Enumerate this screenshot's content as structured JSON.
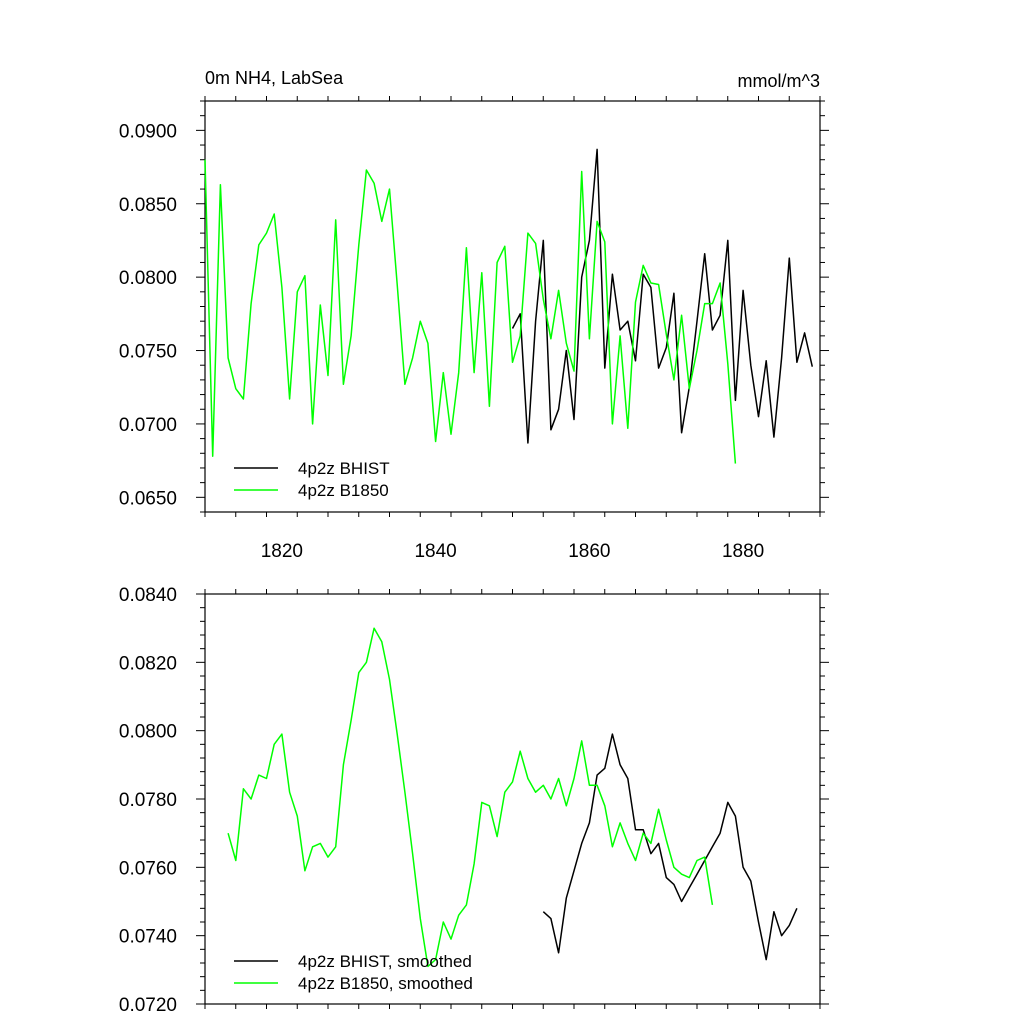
{
  "chart_data": [
    {
      "type": "line",
      "title_left": "0m NH4, LabSea",
      "title_right": "mmol/m^3",
      "xlim": [
        1810,
        1890
      ],
      "ylim": [
        0.064,
        0.092
      ],
      "xticks": [
        1820,
        1840,
        1860,
        1880
      ],
      "yticks": [
        0.065,
        0.07,
        0.075,
        0.08,
        0.085,
        0.09
      ],
      "ytick_labels": [
        "0.0650",
        "0.0700",
        "0.0750",
        "0.0800",
        "0.0850",
        "0.0900"
      ],
      "show_xtick_labels": true,
      "legend_position": "bottom-left",
      "series": [
        {
          "name": "4p2z BHIST",
          "color": "#000000",
          "x": [
            1850,
            1851,
            1852,
            1853,
            1854,
            1855,
            1856,
            1857,
            1858,
            1859,
            1860,
            1861,
            1862,
            1863,
            1864,
            1865,
            1866,
            1867,
            1868,
            1869,
            1870,
            1871,
            1872,
            1873,
            1874,
            1875,
            1876,
            1877,
            1878,
            1879,
            1880,
            1881,
            1882,
            1883,
            1884,
            1885,
            1886,
            1887,
            1888,
            1889
          ],
          "values": [
            0.0765,
            0.0775,
            0.0687,
            0.077,
            0.0825,
            0.0696,
            0.071,
            0.075,
            0.0703,
            0.08,
            0.0825,
            0.0887,
            0.0738,
            0.0802,
            0.0764,
            0.077,
            0.0743,
            0.0802,
            0.0793,
            0.0738,
            0.0752,
            0.0789,
            0.0694,
            0.0725,
            0.077,
            0.0816,
            0.0764,
            0.0774,
            0.0825,
            0.0716,
            0.0791,
            0.074,
            0.0705,
            0.0743,
            0.0691,
            0.0745,
            0.0813,
            0.0742,
            0.0762,
            0.0739
          ]
        },
        {
          "name": "4p2z B1850",
          "color": "#00ff00",
          "x": [
            1810,
            1811,
            1812,
            1813,
            1814,
            1815,
            1816,
            1817,
            1818,
            1819,
            1820,
            1821,
            1822,
            1823,
            1824,
            1825,
            1826,
            1827,
            1828,
            1829,
            1830,
            1831,
            1832,
            1833,
            1834,
            1835,
            1836,
            1837,
            1838,
            1839,
            1840,
            1841,
            1842,
            1843,
            1844,
            1845,
            1846,
            1847,
            1848,
            1849,
            1850,
            1851,
            1852,
            1853,
            1854,
            1855,
            1856,
            1857,
            1858,
            1859,
            1860,
            1861,
            1862,
            1863,
            1864,
            1865,
            1866,
            1867,
            1868,
            1869,
            1870,
            1871,
            1872,
            1873,
            1874,
            1875,
            1876,
            1877,
            1878,
            1879
          ],
          "values": [
            0.088,
            0.0678,
            0.0863,
            0.0745,
            0.0724,
            0.0717,
            0.0782,
            0.0822,
            0.083,
            0.0843,
            0.0793,
            0.0717,
            0.079,
            0.0801,
            0.07,
            0.0781,
            0.0733,
            0.0839,
            0.0727,
            0.076,
            0.0822,
            0.0873,
            0.0864,
            0.0838,
            0.086,
            0.0795,
            0.0727,
            0.0745,
            0.077,
            0.0755,
            0.0688,
            0.0735,
            0.0693,
            0.0735,
            0.082,
            0.0735,
            0.0803,
            0.0712,
            0.081,
            0.0821,
            0.0742,
            0.076,
            0.083,
            0.0823,
            0.0785,
            0.0758,
            0.0791,
            0.0755,
            0.0736,
            0.0872,
            0.0758,
            0.0838,
            0.0824,
            0.07,
            0.076,
            0.0697,
            0.0783,
            0.0808,
            0.0796,
            0.0795,
            0.0761,
            0.073,
            0.0774,
            0.0724,
            0.075,
            0.0782,
            0.0782,
            0.0796,
            0.0741,
            0.0673
          ]
        }
      ]
    },
    {
      "type": "line",
      "xlim": [
        1810,
        1890
      ],
      "ylim": [
        0.072,
        0.084
      ],
      "xticks": [
        1820,
        1840,
        1860,
        1880
      ],
      "yticks": [
        0.072,
        0.074,
        0.076,
        0.078,
        0.08,
        0.082,
        0.084
      ],
      "ytick_labels": [
        "0.0720",
        "0.0740",
        "0.0760",
        "0.0780",
        "0.0800",
        "0.0820",
        "0.0840"
      ],
      "show_xtick_labels": false,
      "legend_position": "bottom-left",
      "series": [
        {
          "name": "4p2z BHIST, smoothed",
          "color": "#000000",
          "x": [
            1854,
            1855,
            1856,
            1857,
            1858,
            1859,
            1860,
            1861,
            1862,
            1863,
            1864,
            1865,
            1866,
            1867,
            1868,
            1869,
            1870,
            1871,
            1872,
            1873,
            1874,
            1875,
            1876,
            1877,
            1878,
            1879,
            1880,
            1881,
            1882,
            1883,
            1884,
            1885,
            1886,
            1887
          ],
          "values": [
            0.0747,
            0.0745,
            0.0735,
            0.0751,
            0.0759,
            0.0767,
            0.0773,
            0.0787,
            0.0789,
            0.0799,
            0.079,
            0.0786,
            0.0771,
            0.0771,
            0.0764,
            0.0767,
            0.0757,
            0.0755,
            0.075,
            0.0754,
            0.0758,
            0.0762,
            0.0766,
            0.077,
            0.0779,
            0.0775,
            0.076,
            0.0756,
            0.0744,
            0.0733,
            0.0747,
            0.074,
            0.0743,
            0.0748
          ]
        },
        {
          "name": "4p2z B1850, smoothed",
          "color": "#00ff00",
          "x": [
            1813,
            1814,
            1815,
            1816,
            1817,
            1818,
            1819,
            1820,
            1821,
            1822,
            1823,
            1824,
            1825,
            1826,
            1827,
            1828,
            1829,
            1830,
            1831,
            1832,
            1833,
            1834,
            1835,
            1836,
            1837,
            1838,
            1839,
            1840,
            1841,
            1842,
            1843,
            1844,
            1845,
            1846,
            1847,
            1848,
            1849,
            1850,
            1851,
            1852,
            1853,
            1854,
            1855,
            1856,
            1857,
            1858,
            1859,
            1860,
            1861,
            1862,
            1863,
            1864,
            1865,
            1866,
            1867,
            1868,
            1869,
            1870,
            1871,
            1872,
            1873,
            1874,
            1875,
            1876
          ],
          "values": [
            0.077,
            0.0762,
            0.0783,
            0.078,
            0.0787,
            0.0786,
            0.0796,
            0.0799,
            0.0782,
            0.0775,
            0.0759,
            0.0766,
            0.0767,
            0.0763,
            0.0766,
            0.079,
            0.0803,
            0.0817,
            0.082,
            0.083,
            0.0826,
            0.0815,
            0.0799,
            0.0782,
            0.0764,
            0.0745,
            0.0731,
            0.0733,
            0.0744,
            0.0739,
            0.0746,
            0.0749,
            0.0761,
            0.0779,
            0.0778,
            0.0769,
            0.0782,
            0.0785,
            0.0794,
            0.0786,
            0.0782,
            0.0784,
            0.078,
            0.0786,
            0.0778,
            0.0786,
            0.0797,
            0.0784,
            0.0784,
            0.0778,
            0.0766,
            0.0773,
            0.0767,
            0.0762,
            0.077,
            0.0767,
            0.0777,
            0.0768,
            0.076,
            0.0758,
            0.0757,
            0.0762,
            0.0763,
            0.0749
          ]
        }
      ]
    }
  ]
}
